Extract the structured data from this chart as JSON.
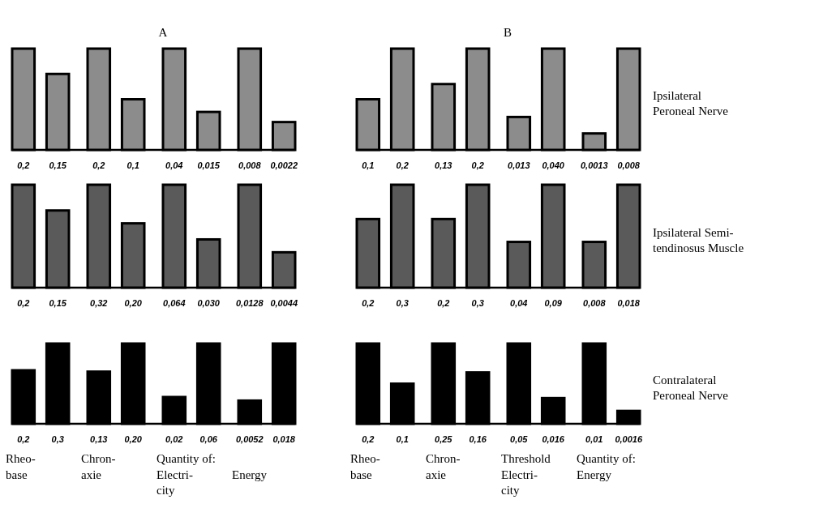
{
  "chart_data": [
    {
      "type": "bar",
      "categories": [
        null,
        null
      ],
      "color": "#8c8c8c",
      "values": [
        0.2,
        0.15
      ],
      "value_labels": [
        "0,2",
        "0,15"
      ]
    },
    {
      "type": "bar",
      "categories": [
        null,
        null
      ],
      "color": "#8c8c8c",
      "values": [
        0.2,
        0.1
      ],
      "value_labels": [
        "0,2",
        "0,1"
      ]
    },
    {
      "type": "bar",
      "title": "A",
      "categories": [
        null,
        null
      ],
      "color": "#8c8c8c",
      "values": [
        0.04,
        0.015
      ],
      "value_labels": [
        "0,04",
        "0,015"
      ]
    },
    {
      "type": "bar",
      "categories": [
        null,
        null
      ],
      "color": "#8c8c8c",
      "values": [
        0.008,
        0.0022
      ],
      "value_labels": [
        "0,008",
        "0,0022"
      ]
    },
    {
      "type": "bar",
      "categories": [
        null,
        null
      ],
      "color": "#8c8c8c",
      "values": [
        0.1,
        0.2
      ],
      "value_labels": [
        "0,1",
        "0,2"
      ]
    },
    {
      "type": "bar",
      "categories": [
        null,
        null
      ],
      "color": "#8c8c8c",
      "values": [
        0.13,
        0.2
      ],
      "value_labels": [
        "0,13",
        "0,2"
      ]
    },
    {
      "type": "bar",
      "title": "B",
      "categories": [
        null,
        null
      ],
      "color": "#8c8c8c",
      "values": [
        0.013,
        0.04
      ],
      "value_labels": [
        "0,013",
        "0,040"
      ]
    },
    {
      "type": "bar",
      "categories": [
        null,
        null
      ],
      "color": "#8c8c8c",
      "values": [
        0.0013,
        0.008
      ],
      "value_labels": [
        "0,0013",
        "0,008"
      ],
      "y2label": "Ipsilateral\nPeroneal Nerve"
    },
    {
      "type": "bar",
      "categories": [
        null,
        null
      ],
      "color": "#5a5a5a",
      "values": [
        0.2,
        0.15
      ],
      "value_labels": [
        "0,2",
        "0,15"
      ]
    },
    {
      "type": "bar",
      "categories": [
        null,
        null
      ],
      "color": "#5a5a5a",
      "values": [
        0.32,
        0.2
      ],
      "value_labels": [
        "0,32",
        "0,20"
      ]
    },
    {
      "type": "bar",
      "categories": [
        null,
        null
      ],
      "color": "#5a5a5a",
      "values": [
        0.064,
        0.03
      ],
      "value_labels": [
        "0,064",
        "0,030"
      ]
    },
    {
      "type": "bar",
      "categories": [
        null,
        null
      ],
      "color": "#5a5a5a",
      "values": [
        0.0128,
        0.0044
      ],
      "value_labels": [
        "0,0128",
        "0,0044"
      ]
    },
    {
      "type": "bar",
      "categories": [
        null,
        null
      ],
      "color": "#5a5a5a",
      "values": [
        0.2,
        0.3
      ],
      "value_labels": [
        "0,2",
        "0,3"
      ]
    },
    {
      "type": "bar",
      "categories": [
        null,
        null
      ],
      "color": "#5a5a5a",
      "values": [
        0.2,
        0.3
      ],
      "value_labels": [
        "0,2",
        "0,3"
      ]
    },
    {
      "type": "bar",
      "categories": [
        null,
        null
      ],
      "color": "#5a5a5a",
      "values": [
        0.04,
        0.09
      ],
      "value_labels": [
        "0,04",
        "0,09"
      ]
    },
    {
      "type": "bar",
      "categories": [
        null,
        null
      ],
      "color": "#5a5a5a",
      "values": [
        0.008,
        0.018
      ],
      "value_labels": [
        "0,008",
        "0,018"
      ],
      "y2label": "Ipsilateral Semi-\ntendinosus Muscle"
    },
    {
      "type": "bar",
      "categories": [
        null,
        null
      ],
      "color": "#000000",
      "values": [
        0.2,
        0.3
      ],
      "value_labels": [
        "0,2",
        "0,3"
      ],
      "annotations": [
        "Rheo-\nbase"
      ]
    },
    {
      "type": "bar",
      "categories": [
        null,
        null
      ],
      "color": "#000000",
      "values": [
        0.13,
        0.2
      ],
      "value_labels": [
        "0,13",
        "0,20"
      ],
      "annotations": [
        "Chron-\naxie"
      ]
    },
    {
      "type": "bar",
      "categories": [
        null,
        null
      ],
      "color": "#000000",
      "values": [
        0.02,
        0.06
      ],
      "value_labels": [
        "0,02",
        "0,06"
      ],
      "annotations": [
        "Quantity of:\nElectri-\ncity"
      ]
    },
    {
      "type": "bar",
      "categories": [
        null,
        null
      ],
      "color": "#000000",
      "values": [
        0.0052,
        0.018
      ],
      "value_labels": [
        "0,0052",
        "0,018"
      ],
      "annotations": [
        "\nEnergy"
      ]
    },
    {
      "type": "bar",
      "categories": [
        null,
        null
      ],
      "color": "#000000",
      "values": [
        0.2,
        0.1
      ],
      "value_labels": [
        "0,2",
        "0,1"
      ],
      "annotations": [
        "Rheo-\nbase"
      ]
    },
    {
      "type": "bar",
      "categories": [
        null,
        null
      ],
      "color": "#000000",
      "values": [
        0.25,
        0.16
      ],
      "value_labels": [
        "0,25",
        "0,16"
      ],
      "annotations": [
        "Chron-\naxie"
      ]
    },
    {
      "type": "bar",
      "categories": [
        null,
        null
      ],
      "color": "#000000",
      "values": [
        0.05,
        0.016
      ],
      "value_labels": [
        "0,05",
        "0,016"
      ],
      "annotations": [
        "Threshold\nElectri-\ncity"
      ]
    },
    {
      "type": "bar",
      "categories": [
        null,
        null
      ],
      "color": "#000000",
      "values": [
        0.01,
        0.0016
      ],
      "value_labels": [
        "0,01",
        "0,0016"
      ],
      "annotations": [
        "Quantity of:\nEnergy"
      ],
      "y2label": "Contralateral\nPeroneal Nerve"
    }
  ]
}
